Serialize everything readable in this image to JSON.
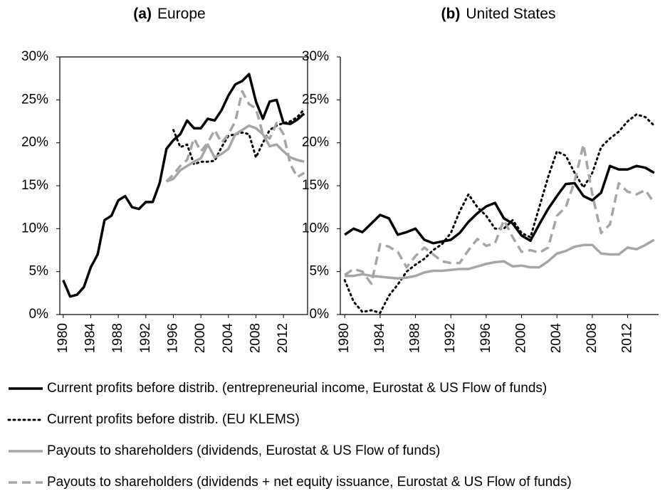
{
  "chart_data": [
    {
      "type": "line",
      "panel_label": "(a)",
      "title": "Europe",
      "x": [
        1980,
        1981,
        1982,
        1983,
        1984,
        1985,
        1986,
        1987,
        1988,
        1989,
        1990,
        1991,
        1992,
        1993,
        1994,
        1995,
        1996,
        1997,
        1998,
        1999,
        2000,
        2001,
        2002,
        2003,
        2004,
        2005,
        2006,
        2007,
        2008,
        2009,
        2010,
        2011,
        2012,
        2013,
        2014,
        2015
      ],
      "xlim": [
        1979.5,
        2015.5
      ],
      "xticks": [
        1980,
        1984,
        1988,
        1992,
        1996,
        2000,
        2004,
        2008,
        2012
      ],
      "ylim": [
        0,
        30
      ],
      "yticks": [
        {
          "value": 0,
          "label": "0%"
        },
        {
          "value": 5,
          "label": "5%"
        },
        {
          "value": 10,
          "label": "10%"
        },
        {
          "value": 15,
          "label": "15%"
        },
        {
          "value": 20,
          "label": "20%"
        },
        {
          "value": 25,
          "label": "25%"
        },
        {
          "value": 30,
          "label": "30%"
        }
      ],
      "frame": true,
      "series": [
        {
          "name": "Current profits before distrib. (entrepreneurial income, Eurostat & US Flow of funds)",
          "color": "#000000",
          "dash": "solid",
          "values": [
            4.0,
            2.1,
            2.3,
            3.2,
            5.5,
            7.0,
            11.0,
            11.5,
            13.3,
            13.8,
            12.5,
            12.3,
            13.1,
            13.1,
            15.3,
            19.3,
            20.3,
            21.0,
            22.6,
            21.7,
            21.7,
            22.8,
            22.6,
            23.8,
            25.5,
            26.8,
            27.2,
            28.0,
            24.8,
            22.8,
            24.8,
            25.0,
            22.3,
            22.2,
            22.7,
            23.4
          ]
        },
        {
          "name": "Current profits before distrib. (EU KLEMS)",
          "color": "#000000",
          "dash": "dotted",
          "values": [
            null,
            null,
            null,
            null,
            null,
            null,
            null,
            null,
            null,
            null,
            null,
            null,
            null,
            null,
            null,
            null,
            21.5,
            19.5,
            19.8,
            17.5,
            17.8,
            17.8,
            17.9,
            19.5,
            20.8,
            21.0,
            21.2,
            21.0,
            18.3,
            20.0,
            21.5,
            22.0,
            22.3,
            22.5,
            23.0,
            23.9
          ]
        },
        {
          "name": "Payouts to shareholders (dividends, Eurostat & US Flow of funds)",
          "color": "#a6a6a6",
          "dash": "solid",
          "values": [
            null,
            null,
            null,
            null,
            null,
            null,
            null,
            null,
            null,
            null,
            null,
            null,
            null,
            null,
            null,
            15.5,
            15.8,
            16.8,
            17.3,
            17.8,
            18.2,
            19.8,
            18.3,
            18.7,
            19.3,
            21.0,
            21.5,
            22.0,
            21.7,
            21.0,
            19.6,
            19.8,
            19.0,
            18.3,
            18.0,
            17.8
          ]
        },
        {
          "name": "Payouts to shareholders (dividends + net equity issuance, Eurostat & US Flow of funds)",
          "color": "#a6a6a6",
          "dash": "dashed",
          "values": [
            null,
            null,
            null,
            null,
            null,
            null,
            null,
            null,
            null,
            null,
            null,
            null,
            null,
            null,
            null,
            15.5,
            16.3,
            17.3,
            18.0,
            20.5,
            19.0,
            20.0,
            21.5,
            20.0,
            21.0,
            22.5,
            26.0,
            24.5,
            24.0,
            21.0,
            20.5,
            22.3,
            21.0,
            17.5,
            16.0,
            16.5
          ]
        }
      ]
    },
    {
      "type": "line",
      "panel_label": "(b)",
      "title": "United States",
      "x": [
        1980,
        1981,
        1982,
        1983,
        1984,
        1985,
        1986,
        1987,
        1988,
        1989,
        1990,
        1991,
        1992,
        1993,
        1994,
        1995,
        1996,
        1997,
        1998,
        1999,
        2000,
        2001,
        2002,
        2003,
        2004,
        2005,
        2006,
        2007,
        2008,
        2009,
        2010,
        2011,
        2012,
        2013,
        2014,
        2015
      ],
      "xlim": [
        1979.5,
        2015.5
      ],
      "xticks": [
        1980,
        1984,
        1988,
        1992,
        1996,
        2000,
        2004,
        2008,
        2012
      ],
      "ylim": [
        0,
        30
      ],
      "yticks": [
        {
          "value": 0,
          "label": "0%"
        },
        {
          "value": 5,
          "label": "5%"
        },
        {
          "value": 10,
          "label": "10%"
        },
        {
          "value": 15,
          "label": "15%"
        },
        {
          "value": 20,
          "label": "20%"
        },
        {
          "value": 25,
          "label": "25%"
        },
        {
          "value": 30,
          "label": "30%"
        }
      ],
      "frame": false,
      "series": [
        {
          "color": "#000000",
          "dash": "solid",
          "values": [
            9.3,
            10.0,
            9.6,
            10.6,
            11.6,
            11.2,
            9.3,
            9.6,
            10.0,
            8.7,
            8.3,
            8.5,
            8.7,
            9.5,
            10.8,
            11.8,
            12.6,
            13.0,
            11.2,
            10.6,
            9.2,
            8.6,
            10.5,
            12.3,
            13.8,
            15.2,
            15.3,
            13.8,
            13.3,
            14.2,
            17.3,
            16.9,
            16.9,
            17.3,
            17.1,
            16.5
          ]
        },
        {
          "color": "#000000",
          "dash": "dotted",
          "values": [
            4.0,
            1.5,
            0.3,
            0.5,
            0.2,
            2.2,
            3.5,
            5.0,
            5.8,
            6.5,
            7.5,
            8.2,
            9.5,
            12.0,
            14.0,
            12.5,
            11.5,
            10.0,
            10.0,
            11.0,
            9.5,
            9.0,
            12.5,
            16.0,
            19.0,
            18.5,
            16.5,
            14.8,
            16.5,
            19.5,
            20.5,
            21.3,
            22.5,
            23.3,
            23.0,
            22.0
          ]
        },
        {
          "color": "#a6a6a6",
          "dash": "solid",
          "values": [
            4.5,
            4.5,
            4.7,
            4.5,
            4.4,
            4.3,
            4.2,
            4.3,
            4.5,
            4.9,
            5.1,
            5.1,
            5.2,
            5.3,
            5.3,
            5.6,
            5.9,
            6.1,
            6.2,
            5.6,
            5.7,
            5.5,
            5.5,
            6.2,
            7.1,
            7.4,
            7.9,
            8.1,
            8.1,
            7.1,
            7.0,
            7.0,
            7.8,
            7.6,
            8.1,
            8.7
          ]
        },
        {
          "color": "#a6a6a6",
          "dash": "dashed",
          "values": [
            4.6,
            5.3,
            5.0,
            3.6,
            8.2,
            7.9,
            7.3,
            5.5,
            6.8,
            7.8,
            7.0,
            6.2,
            6.0,
            6.0,
            7.5,
            8.8,
            8.0,
            8.3,
            11.0,
            9.0,
            7.3,
            7.5,
            7.2,
            7.8,
            11.5,
            12.5,
            15.5,
            19.8,
            14.0,
            9.5,
            10.5,
            15.3,
            14.3,
            14.0,
            14.5,
            13.0
          ]
        }
      ]
    }
  ]
}
